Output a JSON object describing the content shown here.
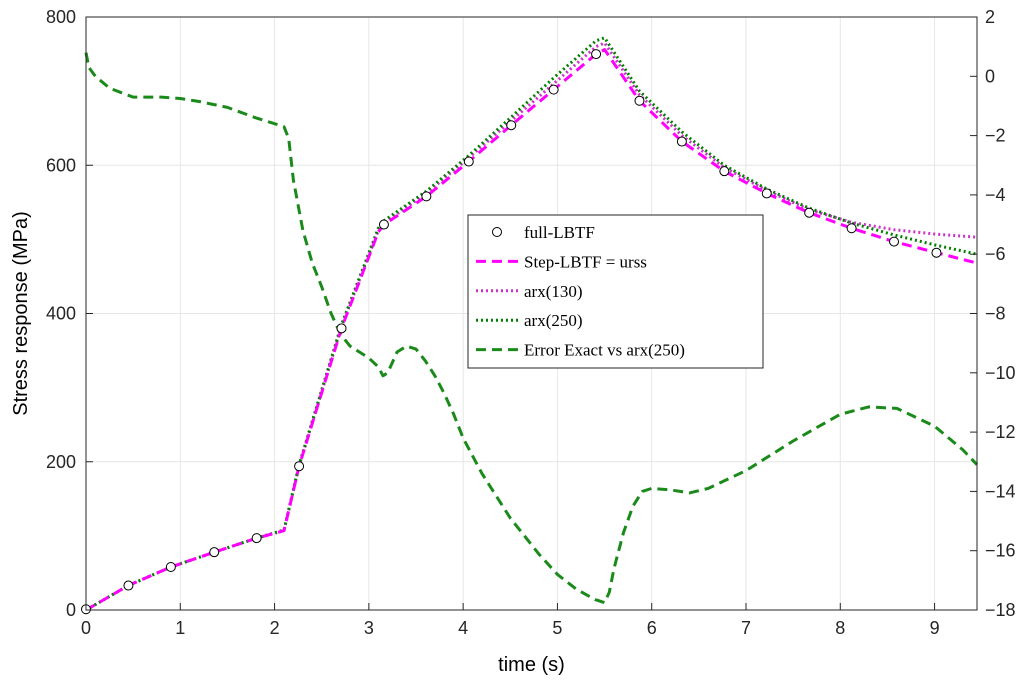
{
  "chart_data": {
    "type": "line",
    "xlabel": "time (s)",
    "ylabel": "Stress response (MPa)",
    "xlim": [
      0,
      9.45
    ],
    "ylim": [
      0,
      800
    ],
    "y2lim": [
      -18,
      2
    ],
    "xticks": [
      0,
      1,
      2,
      3,
      4,
      5,
      6,
      7,
      8,
      9
    ],
    "yticks": [
      0,
      200,
      400,
      600,
      800
    ],
    "y2ticks": [
      2,
      0,
      -2,
      -4,
      -6,
      -8,
      -10,
      -12,
      -14,
      -16,
      -18
    ],
    "grid": true,
    "legend_position": "center",
    "series": [
      {
        "name": "full-LBTF",
        "axis": "left",
        "style": "markers",
        "marker": "circle",
        "color": "#000000",
        "x": [
          0,
          0.45,
          0.9,
          1.36,
          1.81,
          2.26,
          2.71,
          3.16,
          3.61,
          4.06,
          4.51,
          4.96,
          5.41,
          5.87,
          6.32,
          6.77,
          7.22,
          7.67,
          8.12,
          8.57,
          9.02
        ],
        "y": [
          1,
          33,
          58,
          78,
          97,
          194,
          380,
          520,
          558,
          605,
          654,
          702,
          750,
          687,
          632,
          592,
          562,
          536,
          515,
          497,
          482
        ]
      },
      {
        "name": "Step-LBTF = urss",
        "axis": "left",
        "style": "dashed",
        "color": "#ff00ff",
        "x": [
          0,
          0.45,
          0.9,
          1.36,
          1.81,
          2.1,
          2.26,
          2.71,
          3.1,
          3.16,
          3.61,
          4.06,
          4.51,
          4.96,
          5.41,
          5.5,
          5.87,
          6.32,
          6.77,
          7.22,
          7.67,
          8.12,
          8.57,
          9.02,
          9.45
        ],
        "y": [
          0,
          33,
          58,
          78,
          97,
          107,
          194,
          380,
          510,
          520,
          558,
          605,
          654,
          702,
          750,
          756,
          687,
          632,
          592,
          562,
          536,
          515,
          497,
          482,
          468
        ]
      },
      {
        "name": "arx(130)",
        "axis": "left",
        "style": "dotted",
        "color": "#cc33cc",
        "x": [
          0,
          0.45,
          0.9,
          1.36,
          1.81,
          2.1,
          2.26,
          2.71,
          3.1,
          3.16,
          3.61,
          4.06,
          4.51,
          4.96,
          5.41,
          5.5,
          5.87,
          6.32,
          6.77,
          7.22,
          7.67,
          8.12,
          8.57,
          9.02,
          9.45
        ],
        "y": [
          0,
          33,
          58,
          78,
          97,
          107,
          194,
          382,
          512,
          522,
          562,
          610,
          660,
          710,
          760,
          765,
          695,
          640,
          597,
          566,
          540,
          523,
          513,
          507,
          503
        ]
      },
      {
        "name": "arx(250)",
        "axis": "left",
        "style": "dotted",
        "color": "#008000",
        "x": [
          0,
          0.45,
          0.9,
          1.36,
          1.81,
          2.1,
          2.26,
          2.71,
          3.1,
          3.16,
          3.61,
          4.06,
          4.51,
          4.96,
          5.41,
          5.5,
          5.87,
          6.32,
          6.77,
          7.22,
          7.67,
          8.12,
          8.57,
          9.02,
          9.45
        ],
        "y": [
          0,
          33,
          58,
          78,
          97,
          108,
          196,
          385,
          515,
          525,
          565,
          613,
          665,
          718,
          768,
          772,
          700,
          645,
          600,
          568,
          542,
          522,
          506,
          492,
          480
        ]
      },
      {
        "name": "Error Exact vs arx(250)",
        "axis": "right",
        "style": "dashed",
        "color": "#1a8a1a",
        "x": [
          0,
          0.03,
          0.1,
          0.25,
          0.5,
          0.8,
          1.0,
          1.2,
          1.5,
          1.8,
          2.0,
          2.1,
          2.15,
          2.2,
          2.3,
          2.4,
          2.5,
          2.6,
          2.7,
          2.8,
          2.9,
          3.0,
          3.1,
          3.15,
          3.2,
          3.3,
          3.4,
          3.5,
          3.6,
          3.7,
          3.8,
          3.9,
          4.0,
          4.2,
          4.5,
          4.8,
          5.0,
          5.2,
          5.4,
          5.5,
          5.55,
          5.6,
          5.7,
          5.8,
          5.9,
          6.0,
          6.2,
          6.4,
          6.6,
          6.8,
          7.0,
          7.5,
          8.0,
          8.3,
          8.6,
          9.0,
          9.3,
          9.45
        ],
        "y": [
          0.8,
          0.3,
          0.0,
          -0.4,
          -0.7,
          -0.7,
          -0.75,
          -0.85,
          -1.05,
          -1.4,
          -1.6,
          -1.7,
          -2.1,
          -3.5,
          -5.2,
          -6.3,
          -7.1,
          -8.0,
          -8.7,
          -9.1,
          -9.3,
          -9.5,
          -9.8,
          -10.1,
          -10.0,
          -9.3,
          -9.1,
          -9.2,
          -9.6,
          -10.1,
          -10.7,
          -11.4,
          -12.2,
          -13.4,
          -14.9,
          -16.1,
          -16.8,
          -17.3,
          -17.65,
          -17.75,
          -17.4,
          -16.6,
          -15.4,
          -14.5,
          -14.0,
          -13.9,
          -13.95,
          -14.05,
          -13.9,
          -13.6,
          -13.3,
          -12.3,
          -11.4,
          -11.15,
          -11.2,
          -11.8,
          -12.6,
          -13.1
        ]
      }
    ]
  }
}
